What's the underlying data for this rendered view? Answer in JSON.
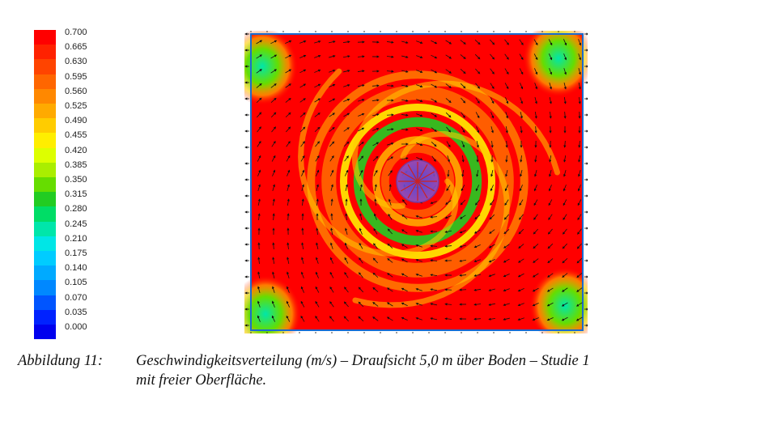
{
  "chart_data": {
    "type": "heatmap",
    "colorbar": {
      "ticks": [
        "0.700",
        "0.665",
        "0.630",
        "0.595",
        "0.560",
        "0.525",
        "0.490",
        "0.455",
        "0.420",
        "0.385",
        "0.350",
        "0.315",
        "0.280",
        "0.245",
        "0.210",
        "0.175",
        "0.140",
        "0.105",
        "0.070",
        "0.035",
        "0.000"
      ],
      "colors": [
        "#ff0000",
        "#ff2200",
        "#ff4400",
        "#ff6600",
        "#ff8800",
        "#ffaa00",
        "#ffcc00",
        "#ffee00",
        "#ddff00",
        "#aaee00",
        "#66dd00",
        "#22cc22",
        "#00dd66",
        "#00e6aa",
        "#00e6e6",
        "#00ccff",
        "#00aaff",
        "#0088ff",
        "#0055ff",
        "#0022ff",
        "#0000ee"
      ],
      "range": [
        0.0,
        0.7
      ]
    },
    "field": {
      "background_value": 0.69,
      "rings": [
        {
          "radius_frac": 0.2,
          "value": 0.33
        },
        {
          "radius_frac": 0.14,
          "value": 0.52
        },
        {
          "radius_frac": 0.25,
          "value": 0.47
        }
      ],
      "corner_value": 0.24,
      "center_marker": "rotor"
    }
  },
  "caption": {
    "label": "Abbildung 11:",
    "line1": "Geschwindigkeitsverteilung (m/s) – Draufsicht 5,0 m über Boden – Studie 1",
    "line2": "mit freier Oberfläche."
  }
}
